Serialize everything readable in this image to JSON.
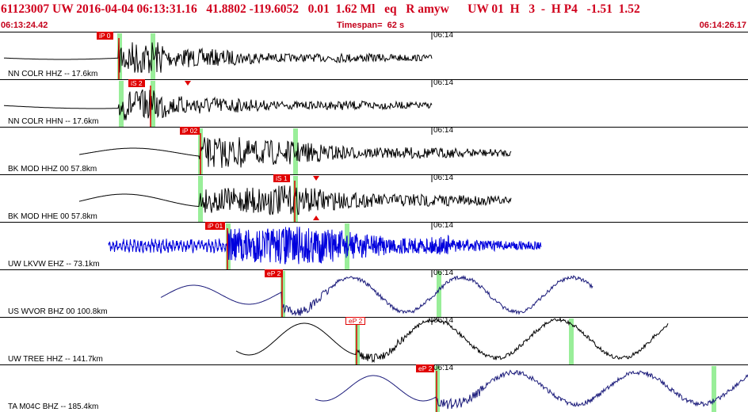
{
  "header": {
    "event_line": "61123007 UW 2016-04-04 06:13:31.16   41.8802 -119.6052   0.01  1.62 Ml   eq   R amyw      UW 01  H   3  -  H P4   -1.51  1.52",
    "start_time": "06:13:24.42",
    "timespan": "Timespan=  62 s",
    "end_time": "06:14:26.17"
  },
  "colors": {
    "title": "#d0001c",
    "trace": "#000000",
    "blue_trace": "#0000dd",
    "navy_trace": "#1a1a7a",
    "pick_red": "#e00000",
    "window_green": "#99ee99"
  },
  "panels": [
    {
      "label": "NN COLR HHZ -- 17.6km",
      "time_mark": "06:14",
      "pick": "iP 0",
      "color": "#000000"
    },
    {
      "label": "NN COLR HHN -- 17.6km",
      "time_mark": "06:14",
      "pick": "iS 2",
      "color": "#000000"
    },
    {
      "label": "BK MOD HHZ 00 57.8km",
      "time_mark": "06:14",
      "pick": "iP 02",
      "color": "#000000"
    },
    {
      "label": "BK MOD HHE 00 57.8km",
      "time_mark": "06:14",
      "pick": "iS 1",
      "color": "#000000"
    },
    {
      "label": "UW LKVW EHZ -- 73.1km",
      "time_mark": "06:14",
      "pick": "iP 01",
      "color": "#0000dd"
    },
    {
      "label": "US WVOR BHZ 00 100.8km",
      "time_mark": "06:14",
      "pick": "eP 2",
      "color": "#1a1a7a"
    },
    {
      "label": "UW TREE HHZ -- 141.7km",
      "time_mark": "06:14",
      "pick": "eP 2",
      "color": "#000000"
    },
    {
      "label": "TA M04C BHZ -- 185.4km",
      "time_mark": "06:14",
      "pick": "eP 2",
      "color": "#1a1a7a"
    }
  ]
}
